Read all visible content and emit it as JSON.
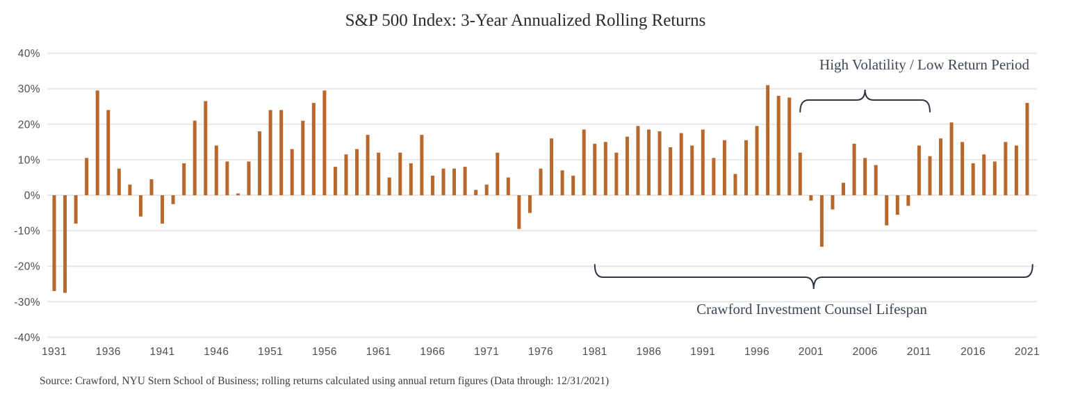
{
  "page": {
    "title": "S&P 500 Index: 3-Year Annualized Rolling Returns",
    "source_note": "Source: Crawford, NYU Stern School of Business; rolling returns calculated using annual return figures (Data through: 12/31/2021)"
  },
  "annotations": {
    "high_volatility": {
      "label": "High Volatility / Low Return Period",
      "start_year": 2000,
      "end_year": 2012,
      "brace_side": "top"
    },
    "crawford_lifespan": {
      "label": "Crawford Investment Counsel Lifespan",
      "start_year": 1981,
      "end_year": 2021.5,
      "brace_side": "bottom"
    }
  },
  "colors": {
    "bar": "#b9682c",
    "gridline": "#e8e7e5",
    "axis_text": "#4d4d4d",
    "annotation_text": "#3e4756",
    "brace": "#2e3440",
    "title_text": "#2b2b2b",
    "source_text": "#3b3b3b",
    "background": "#ffffff"
  },
  "chart_data": {
    "type": "bar",
    "title": "S&P 500 Index: 3-Year Annualized Rolling Returns",
    "xlabel": "",
    "ylabel": "",
    "ylim": [
      -40,
      40
    ],
    "ytick_step": 10,
    "ytick_suffix": "%",
    "grid": true,
    "legend": false,
    "xticks": [
      1931,
      1936,
      1941,
      1946,
      1951,
      1956,
      1961,
      1966,
      1971,
      1976,
      1981,
      1986,
      1991,
      1996,
      2001,
      2006,
      2011,
      2016,
      2021
    ],
    "years": [
      1931,
      1932,
      1933,
      1934,
      1935,
      1936,
      1937,
      1938,
      1939,
      1940,
      1941,
      1942,
      1943,
      1944,
      1945,
      1946,
      1947,
      1948,
      1949,
      1950,
      1951,
      1952,
      1953,
      1954,
      1955,
      1956,
      1957,
      1958,
      1959,
      1960,
      1961,
      1962,
      1963,
      1964,
      1965,
      1966,
      1967,
      1968,
      1969,
      1970,
      1971,
      1972,
      1973,
      1974,
      1975,
      1976,
      1977,
      1978,
      1979,
      1980,
      1981,
      1982,
      1983,
      1984,
      1985,
      1986,
      1987,
      1988,
      1989,
      1990,
      1991,
      1992,
      1993,
      1994,
      1995,
      1996,
      1997,
      1998,
      1999,
      2000,
      2001,
      2002,
      2003,
      2004,
      2005,
      2006,
      2007,
      2008,
      2009,
      2010,
      2011,
      2012,
      2013,
      2014,
      2015,
      2016,
      2017,
      2018,
      2019,
      2020,
      2021
    ],
    "values": [
      -27,
      -27.5,
      -8,
      10.5,
      29.5,
      24,
      7.5,
      3,
      -6,
      4.5,
      -8,
      -2.5,
      9,
      21,
      26.5,
      14,
      9.5,
      0.5,
      9.5,
      18,
      24,
      24,
      13,
      21,
      26,
      29.5,
      8,
      11.5,
      13,
      17,
      12,
      5,
      12,
      9,
      17,
      5.5,
      7.5,
      7.5,
      8,
      1.5,
      3,
      12,
      5,
      -9.5,
      -5,
      7.5,
      16,
      7,
      5.5,
      18.5,
      14.5,
      15,
      12,
      16.5,
      19.5,
      18.5,
      18,
      13.5,
      17.5,
      14,
      18.5,
      10.5,
      15.5,
      6,
      15.5,
      19.5,
      31,
      28,
      27.5,
      12,
      -1.5,
      -14.5,
      -4,
      3.5,
      14.5,
      10.5,
      8.5,
      -8.5,
      -5.5,
      -3,
      14,
      11,
      16,
      20.5,
      15,
      9,
      11.5,
      9.5,
      15,
      14,
      26
    ]
  }
}
